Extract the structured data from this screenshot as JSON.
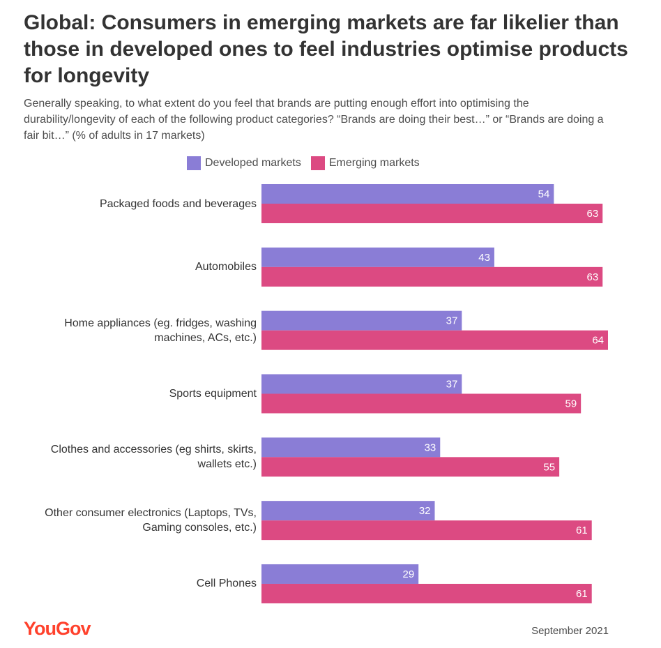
{
  "title": "Global: Consumers in emerging markets are far likelier than those in developed ones to feel industries optimise products for longevity",
  "subtitle": "Generally speaking, to what extent do you feel that brands are putting enough effort into optimising the durability/longevity of each of the following product categories? “Brands are doing their best…” or “Brands are doing a fair bit…” (% of adults in 17 markets)",
  "footer": {
    "logo": "YouGov",
    "date": "September 2021"
  },
  "colors": {
    "developed": "#8a7dd6",
    "emerging": "#dc4a82",
    "logo": "#ff412c"
  },
  "chart_data": {
    "type": "bar",
    "orientation": "horizontal",
    "categories": [
      "Packaged foods and beverages",
      "Automobiles",
      "Home appliances (eg. fridges, washing machines, ACs, etc.)",
      "Sports equipment",
      "Clothes and accessories (eg shirts, skirts, wallets etc.)",
      "Other consumer electronics (Laptops, TVs, Gaming consoles, etc.)",
      "Cell Phones"
    ],
    "series": [
      {
        "name": "Developed markets",
        "values": [
          54,
          43,
          37,
          37,
          33,
          32,
          29
        ]
      },
      {
        "name": "Emerging markets",
        "values": [
          63,
          63,
          64,
          59,
          55,
          61,
          61
        ]
      }
    ],
    "xlim": [
      0,
      64
    ],
    "legend_position": "top",
    "grid": false
  }
}
